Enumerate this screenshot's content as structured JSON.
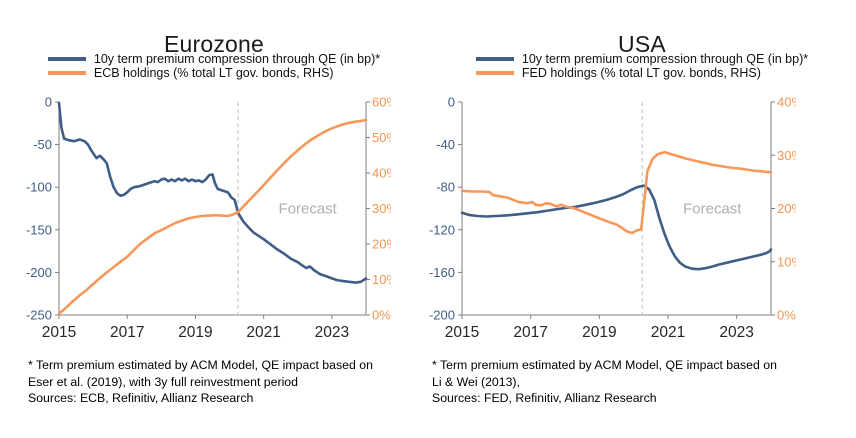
{
  "colors": {
    "premium_line": "#3F5D86",
    "holdings_line": "#F8975A",
    "axis": "#7F7F7F",
    "left_tick_label": "#3F5D86",
    "right_tick_label": "#F6954F",
    "x_tick_label": "#262626",
    "forecast_line": "#C9C9C9",
    "forecast_text": "#AFAFAF"
  },
  "chart_data": [
    {
      "type": "line",
      "title": "Eurozone",
      "x_range": [
        2015,
        2024
      ],
      "x_ticks": [
        2015,
        2017,
        2019,
        2021,
        2023
      ],
      "left_axis": {
        "range": [
          -250,
          0
        ],
        "label_values": [
          0,
          -50,
          -100,
          -150,
          -200,
          -250
        ]
      },
      "right_axis": {
        "range": [
          0,
          60
        ],
        "labels": [
          "0%",
          "10%",
          "20%",
          "30%",
          "40%",
          "50%",
          "60%"
        ]
      },
      "forecast": {
        "x": 2020.25,
        "label": "Forecast"
      },
      "series": [
        {
          "name": "10y term premium compression through QE (in bp)*",
          "axis": "left",
          "color": "#3F5D86",
          "points": [
            [
              2015.0,
              -1
            ],
            [
              2015.07,
              -30
            ],
            [
              2015.15,
              -43
            ],
            [
              2015.3,
              -45
            ],
            [
              2015.45,
              -46
            ],
            [
              2015.6,
              -44
            ],
            [
              2015.75,
              -46
            ],
            [
              2015.85,
              -50
            ],
            [
              2015.95,
              -57
            ],
            [
              2016.05,
              -63
            ],
            [
              2016.1,
              -66
            ],
            [
              2016.2,
              -63
            ],
            [
              2016.3,
              -67
            ],
            [
              2016.4,
              -72
            ],
            [
              2016.5,
              -88
            ],
            [
              2016.6,
              -100
            ],
            [
              2016.7,
              -107
            ],
            [
              2016.8,
              -110
            ],
            [
              2016.9,
              -109
            ],
            [
              2017.0,
              -106
            ],
            [
              2017.1,
              -102
            ],
            [
              2017.2,
              -100
            ],
            [
              2017.35,
              -99
            ],
            [
              2017.5,
              -97
            ],
            [
              2017.65,
              -95
            ],
            [
              2017.8,
              -93
            ],
            [
              2017.9,
              -94
            ],
            [
              2018.0,
              -91
            ],
            [
              2018.1,
              -90
            ],
            [
              2018.2,
              -93
            ],
            [
              2018.3,
              -91
            ],
            [
              2018.4,
              -93
            ],
            [
              2018.5,
              -90
            ],
            [
              2018.6,
              -92
            ],
            [
              2018.7,
              -90
            ],
            [
              2018.8,
              -93
            ],
            [
              2018.9,
              -91
            ],
            [
              2019.0,
              -93
            ],
            [
              2019.1,
              -92
            ],
            [
              2019.2,
              -94
            ],
            [
              2019.3,
              -91
            ],
            [
              2019.4,
              -86
            ],
            [
              2019.5,
              -85
            ],
            [
              2019.57,
              -95
            ],
            [
              2019.65,
              -102
            ],
            [
              2019.8,
              -104
            ],
            [
              2019.95,
              -106
            ],
            [
              2020.05,
              -112
            ],
            [
              2020.15,
              -115
            ],
            [
              2020.25,
              -130
            ],
            [
              2020.4,
              -140
            ],
            [
              2020.55,
              -147
            ],
            [
              2020.7,
              -153
            ],
            [
              2020.85,
              -157
            ],
            [
              2021.0,
              -161
            ],
            [
              2021.2,
              -167
            ],
            [
              2021.4,
              -173
            ],
            [
              2021.6,
              -178
            ],
            [
              2021.8,
              -184
            ],
            [
              2022.0,
              -188
            ],
            [
              2022.1,
              -191
            ],
            [
              2022.25,
              -195
            ],
            [
              2022.35,
              -193
            ],
            [
              2022.5,
              -198
            ],
            [
              2022.65,
              -202
            ],
            [
              2022.8,
              -204
            ],
            [
              2023.0,
              -207
            ],
            [
              2023.15,
              -209
            ],
            [
              2023.3,
              -210
            ],
            [
              2023.5,
              -211
            ],
            [
              2023.7,
              -212
            ],
            [
              2023.85,
              -211
            ],
            [
              2024.0,
              -207
            ]
          ]
        },
        {
          "name": "ECB holdings (% total LT gov. bonds, RHS)",
          "axis": "right",
          "color": "#F8975A",
          "points": [
            [
              2015.0,
              0.4
            ],
            [
              2015.2,
              2.0
            ],
            [
              2015.4,
              3.8
            ],
            [
              2015.6,
              5.5
            ],
            [
              2015.8,
              7.0
            ],
            [
              2016.0,
              8.7
            ],
            [
              2016.2,
              10.4
            ],
            [
              2016.4,
              12.0
            ],
            [
              2016.6,
              13.5
            ],
            [
              2016.8,
              15.0
            ],
            [
              2017.0,
              16.4
            ],
            [
              2017.2,
              18.3
            ],
            [
              2017.4,
              20.2
            ],
            [
              2017.6,
              21.6
            ],
            [
              2017.8,
              23.0
            ],
            [
              2018.0,
              23.9
            ],
            [
              2018.2,
              24.9
            ],
            [
              2018.4,
              25.9
            ],
            [
              2018.6,
              26.6
            ],
            [
              2018.8,
              27.2
            ],
            [
              2019.0,
              27.6
            ],
            [
              2019.2,
              27.9
            ],
            [
              2019.4,
              28.0
            ],
            [
              2019.6,
              28.1
            ],
            [
              2019.8,
              28.0
            ],
            [
              2019.95,
              27.9
            ],
            [
              2020.1,
              28.3
            ],
            [
              2020.25,
              29.0
            ],
            [
              2020.4,
              30.5
            ],
            [
              2020.6,
              32.5
            ],
            [
              2020.8,
              34.5
            ],
            [
              2021.0,
              36.6
            ],
            [
              2021.2,
              38.7
            ],
            [
              2021.4,
              40.8
            ],
            [
              2021.6,
              42.8
            ],
            [
              2021.8,
              44.7
            ],
            [
              2022.0,
              46.4
            ],
            [
              2022.2,
              48.0
            ],
            [
              2022.4,
              49.4
            ],
            [
              2022.6,
              50.6
            ],
            [
              2022.8,
              51.7
            ],
            [
              2023.0,
              52.6
            ],
            [
              2023.2,
              53.3
            ],
            [
              2023.4,
              53.9
            ],
            [
              2023.6,
              54.3
            ],
            [
              2023.8,
              54.6
            ],
            [
              2024.0,
              54.9
            ]
          ]
        }
      ],
      "footnote_lines": [
        "* Term premium estimated by ACM Model, QE impact based on",
        "Eser et al. (2019), with 3y full reinvestment period",
        "Sources: ECB, Refinitiv, Allianz Research"
      ]
    },
    {
      "type": "line",
      "title": "USA",
      "x_range": [
        2015,
        2024
      ],
      "x_ticks": [
        2015,
        2017,
        2019,
        2021,
        2023
      ],
      "left_axis": {
        "range": [
          -200,
          0
        ],
        "label_values": [
          0,
          -40,
          -80,
          -120,
          -160,
          -200
        ]
      },
      "right_axis": {
        "range": [
          0,
          40
        ],
        "labels": [
          "0%",
          "10%",
          "20%",
          "30%",
          "40%"
        ]
      },
      "forecast": {
        "x": 2020.25,
        "label": "Forecast"
      },
      "series": [
        {
          "name": "10y term premium compression through QE (in bp)*",
          "axis": "left",
          "color": "#3F5D86",
          "points": [
            [
              2015.0,
              -104
            ],
            [
              2015.2,
              -106
            ],
            [
              2015.45,
              -107
            ],
            [
              2015.7,
              -107.5
            ],
            [
              2016.0,
              -107
            ],
            [
              2016.3,
              -106.5
            ],
            [
              2016.6,
              -105.5
            ],
            [
              2016.9,
              -104.5
            ],
            [
              2017.2,
              -103.5
            ],
            [
              2017.5,
              -102
            ],
            [
              2017.8,
              -100.5
            ],
            [
              2018.0,
              -99.5
            ],
            [
              2018.3,
              -98.5
            ],
            [
              2018.6,
              -96.5
            ],
            [
              2018.9,
              -94.5
            ],
            [
              2019.2,
              -92
            ],
            [
              2019.5,
              -89
            ],
            [
              2019.7,
              -86.5
            ],
            [
              2019.9,
              -83
            ],
            [
              2020.1,
              -80
            ],
            [
              2020.3,
              -78.5
            ],
            [
              2020.45,
              -82
            ],
            [
              2020.6,
              -92
            ],
            [
              2020.75,
              -109
            ],
            [
              2020.9,
              -124
            ],
            [
              2021.05,
              -136
            ],
            [
              2021.2,
              -145
            ],
            [
              2021.35,
              -151
            ],
            [
              2021.5,
              -154.5
            ],
            [
              2021.7,
              -156.5
            ],
            [
              2021.9,
              -157
            ],
            [
              2022.1,
              -156
            ],
            [
              2022.3,
              -154.5
            ],
            [
              2022.5,
              -152.5
            ],
            [
              2022.7,
              -151
            ],
            [
              2022.9,
              -149.5
            ],
            [
              2023.1,
              -148
            ],
            [
              2023.3,
              -146.5
            ],
            [
              2023.5,
              -145
            ],
            [
              2023.7,
              -143.5
            ],
            [
              2023.85,
              -142
            ],
            [
              2023.95,
              -140.5
            ],
            [
              2024.0,
              -138.5
            ]
          ]
        },
        {
          "name": "FED holdings (% total LT gov. bonds, RHS)",
          "axis": "right",
          "color": "#F8975A",
          "points": [
            [
              2015.0,
              23.3
            ],
            [
              2015.3,
              23.2
            ],
            [
              2015.6,
              23.2
            ],
            [
              2015.8,
              23.1
            ],
            [
              2015.9,
              22.5
            ],
            [
              2016.1,
              22.3
            ],
            [
              2016.35,
              22.0
            ],
            [
              2016.5,
              21.6
            ],
            [
              2016.65,
              21.2
            ],
            [
              2016.9,
              21.0
            ],
            [
              2017.05,
              21.2
            ],
            [
              2017.15,
              20.7
            ],
            [
              2017.3,
              20.6
            ],
            [
              2017.45,
              21.0
            ],
            [
              2017.6,
              20.8
            ],
            [
              2017.75,
              20.4
            ],
            [
              2017.9,
              20.7
            ],
            [
              2018.05,
              20.3
            ],
            [
              2018.25,
              20.1
            ],
            [
              2018.4,
              19.7
            ],
            [
              2018.6,
              19.2
            ],
            [
              2018.9,
              18.4
            ],
            [
              2019.1,
              17.9
            ],
            [
              2019.3,
              17.4
            ],
            [
              2019.5,
              17.0
            ],
            [
              2019.65,
              16.4
            ],
            [
              2019.8,
              15.7
            ],
            [
              2019.95,
              15.4
            ],
            [
              2020.1,
              15.9
            ],
            [
              2020.22,
              16.1
            ],
            [
              2020.3,
              21.0
            ],
            [
              2020.4,
              27.0
            ],
            [
              2020.55,
              29.3
            ],
            [
              2020.7,
              30.2
            ],
            [
              2020.9,
              30.6
            ],
            [
              2021.1,
              30.2
            ],
            [
              2021.3,
              29.8
            ],
            [
              2021.5,
              29.4
            ],
            [
              2021.7,
              29.1
            ],
            [
              2021.9,
              28.8
            ],
            [
              2022.1,
              28.5
            ],
            [
              2022.3,
              28.2
            ],
            [
              2022.5,
              28.0
            ],
            [
              2022.7,
              27.8
            ],
            [
              2022.9,
              27.6
            ],
            [
              2023.1,
              27.5
            ],
            [
              2023.3,
              27.3
            ],
            [
              2023.5,
              27.1
            ],
            [
              2023.7,
              27.0
            ],
            [
              2023.85,
              26.9
            ],
            [
              2024.0,
              26.8
            ]
          ]
        }
      ],
      "footnote_lines": [
        "* Term premium estimated by ACM Model, QE impact based on",
        "Li & Wei (2013),",
        "Sources: FED, Refinitiv, Allianz Research"
      ]
    }
  ]
}
